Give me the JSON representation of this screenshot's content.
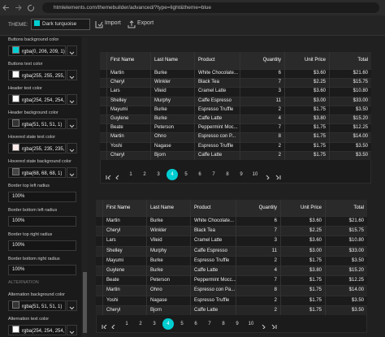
{
  "browser": {
    "url": "htmlelements.com/themebuilder/advanced/?type=light&theme=blue"
  },
  "toolbar": {
    "theme_label": "THEME:",
    "theme": "Dark turquoise",
    "import": "Import",
    "export": "Export"
  },
  "settings": [
    {
      "label": "Buttons background color",
      "value": "rgba(0, 206, 209, 1)",
      "kind": "color"
    },
    {
      "label": "Buttons text color",
      "value": "rgba(255, 255, 255, 1)",
      "kind": "color"
    },
    {
      "label": "Header text color",
      "value": "rgba(254, 254, 254, 1)",
      "kind": "color"
    },
    {
      "label": "Header background color",
      "value": "rgba(51, 51, 51, 1)",
      "kind": "color"
    },
    {
      "label": "Hovered state text color",
      "value": "rgba(255, 235, 235, 1)",
      "kind": "color"
    },
    {
      "label": "Hovered state background color",
      "value": "rgba(68, 68, 68, 1)",
      "kind": "color"
    },
    {
      "label": "Border top left radius",
      "value": "100%",
      "kind": "text"
    },
    {
      "label": "Border bottom left radius",
      "value": "100%",
      "kind": "text"
    },
    {
      "label": "Border top right radius",
      "value": "100%",
      "kind": "text"
    },
    {
      "label": "Border bottom right radius",
      "value": "100%",
      "kind": "text"
    }
  ],
  "section": {
    "title": "ALTERNATION",
    "settings": [
      {
        "label": "Alternation background color",
        "value": "rgba(51, 51, 51, 1)",
        "kind": "color"
      },
      {
        "label": "Alternation text color",
        "value": "rgba(254, 254, 254, 1)",
        "kind": "color"
      }
    ]
  },
  "grids": [
    {
      "columns": [
        "First Name",
        "Last Name",
        "Product",
        "Quantity",
        "Unit Price",
        "Total"
      ],
      "rows": [
        [
          "Martin",
          "Burke",
          "White Chocolate...",
          6,
          "$3.60",
          "$21.60"
        ],
        [
          "Cheryl",
          "Winkler",
          "Black Tea",
          7,
          "$2.25",
          "$15.75"
        ],
        [
          "Lars",
          "Vileid",
          "Cramel Latte",
          3,
          "$3.60",
          "$10.80"
        ],
        [
          "Shelley",
          "Murphy",
          "Caffe Espresso",
          11,
          "$3.00",
          "$33.00"
        ],
        [
          "Mayumi",
          "Burke",
          "Espresso Truffle",
          2,
          "$1.75",
          "$3.50"
        ],
        [
          "Guylene",
          "Burke",
          "Caffe Latte",
          4,
          "$3.80",
          "$15.20"
        ],
        [
          "Beate",
          "Peterson",
          "Peppermint Moc...",
          7,
          "$1.75",
          "$12.25"
        ],
        [
          "Martin",
          "Ohno",
          "Espresso con P...",
          8,
          "$1.75",
          "$14.00"
        ],
        [
          "Yoshi",
          "Nagase",
          "Espresso Truffle",
          2,
          "$1.75",
          "$3.50"
        ],
        [
          "Cheryl",
          "Bjorn",
          "Caffe Latte",
          2,
          "$1.75",
          "$3.50"
        ]
      ],
      "pages": [
        "1",
        "2",
        "3",
        "4",
        "5",
        "6",
        "7",
        "8",
        "9",
        "10"
      ],
      "current_page": 4
    },
    {
      "columns": [
        "First Name",
        "Last Name",
        "Product",
        "Quantity",
        "Unit Price",
        "Total"
      ],
      "rows": [
        [
          "Martin",
          "Burke",
          "White Chocolate...",
          6,
          "$3.60",
          "$21.60"
        ],
        [
          "Cheryl",
          "Winkler",
          "Black Tea",
          7,
          "$2.25",
          "$15.75"
        ],
        [
          "Lars",
          "Vileid",
          "Cramel Latte",
          3,
          "$3.60",
          "$10.80"
        ],
        [
          "Shelley",
          "Murphy",
          "Caffe Espresso",
          11,
          "$3.00",
          "$33.00"
        ],
        [
          "Mayumi",
          "Burke",
          "Espresso Truffle",
          2,
          "$1.75",
          "$3.50"
        ],
        [
          "Guylene",
          "Burke",
          "Caffe Latte",
          4,
          "$3.80",
          "$15.20"
        ],
        [
          "Beate",
          "Peterson",
          "Peppermint Mocc...",
          7,
          "$1.75",
          "$12.25"
        ],
        [
          "Martin",
          "Ohno",
          "Espresso con Pa...",
          8,
          "$1.75",
          "$14.00"
        ],
        [
          "Yoshi",
          "Nagase",
          "Espresso Truffle",
          2,
          "$1.75",
          "$3.50"
        ],
        [
          "Cheryl",
          "Bjorn",
          "Caffe Latte",
          2,
          "$1.75",
          "$3.50"
        ]
      ],
      "pages": [
        "1",
        "2",
        "3",
        "4",
        "5",
        "6",
        "7",
        "8",
        "9",
        "10"
      ],
      "current_page": 4
    }
  ]
}
